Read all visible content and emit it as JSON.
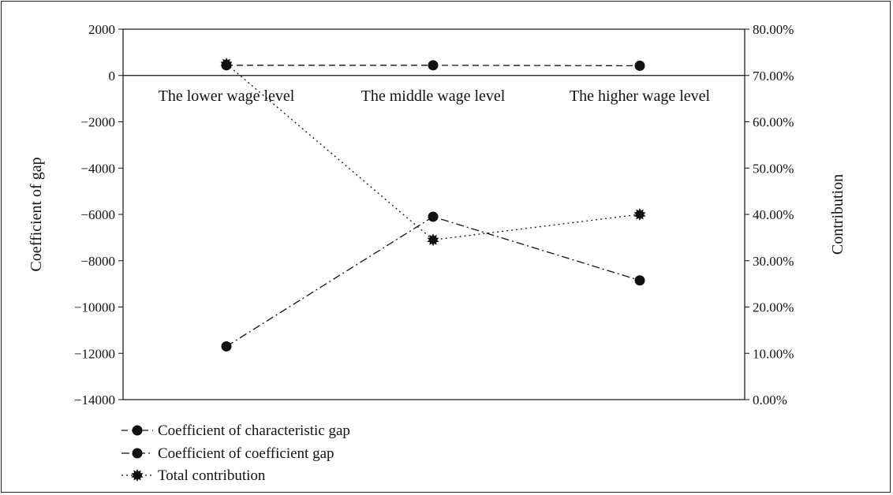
{
  "chart_data": {
    "type": "line",
    "categories": [
      "The lower wage level",
      "The middle wage level",
      "The higher wage level"
    ],
    "left_axis": {
      "label": "Coefficient of gap",
      "ylim": [
        -14000,
        2000
      ],
      "ticks": [
        2000,
        0,
        -2000,
        -4000,
        -6000,
        -8000,
        -10000,
        -12000,
        -14000
      ],
      "tick_labels": [
        "2000",
        "0",
        "−2000",
        "−4000",
        "−6000",
        "−8000",
        "−10000",
        "−12000",
        "−14000"
      ]
    },
    "right_axis": {
      "label": "Contribution",
      "ylim": [
        0,
        80
      ],
      "ticks": [
        80,
        70,
        60,
        50,
        40,
        30,
        20,
        10,
        0
      ],
      "tick_labels": [
        "80.00%",
        "70.00%",
        "60.00%",
        "50.00%",
        "40.00%",
        "30.00%",
        "20.00%",
        "10.00%",
        "0.00%"
      ]
    },
    "series": [
      {
        "name": "Coefficient of characteristic gap",
        "axis": "right",
        "values": [
          72.2,
          72.2,
          72.1
        ],
        "dash": "8,5",
        "marker": "circle"
      },
      {
        "name": "Coefficient of coefficient gap",
        "axis": "left",
        "values": [
          -11700,
          -6100,
          -8850
        ],
        "dash": "10,4,2,4",
        "marker": "circle"
      },
      {
        "name": "Total contribution",
        "axis": "right",
        "values": [
          72.5,
          34.5,
          40.0
        ],
        "dash": "2,4",
        "marker": "star"
      }
    ],
    "grid": false,
    "legend_position": "bottom-left"
  }
}
